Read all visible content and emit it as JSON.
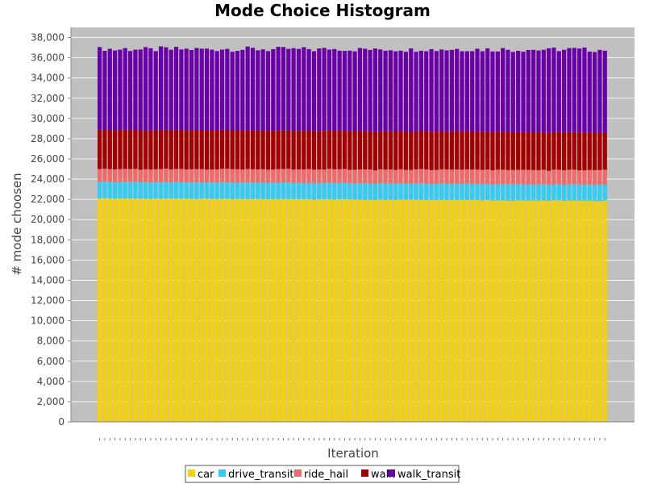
{
  "chart_data": {
    "type": "bar",
    "stacked": true,
    "title": "Mode Choice Histogram",
    "xlabel": "Iteration",
    "ylabel": "# mode choosen",
    "ylim": [
      0,
      39000
    ],
    "yticks": [
      0,
      2000,
      4000,
      6000,
      8000,
      10000,
      12000,
      14000,
      16000,
      18000,
      20000,
      22000,
      24000,
      26000,
      28000,
      30000,
      32000,
      34000,
      36000,
      38000
    ],
    "ytick_labels": [
      "0",
      "2,000",
      "4,000",
      "6,000",
      "8,000",
      "10,000",
      "12,000",
      "14,000",
      "16,000",
      "18,000",
      "20,000",
      "22,000",
      "24,000",
      "26,000",
      "28,000",
      "30,000",
      "32,000",
      "34,000",
      "36,000",
      "38,000"
    ],
    "grid": true,
    "legend_position": "bottom",
    "n_iterations": 100,
    "series": [
      {
        "name": "car",
        "color": "#f5d10a",
        "start": 22100,
        "end": 21850
      },
      {
        "name": "drive_transit",
        "color": "#33ccf2",
        "start": 1650,
        "end": 1600
      },
      {
        "name": "ride_hail",
        "color": "#f06a6a",
        "start": 1250,
        "end": 1450
      },
      {
        "name": "walk",
        "color": "#a50000",
        "start": 3900,
        "end": 3700
      },
      {
        "name": "walk_transit",
        "color": "#6a00a8",
        "start": 7950,
        "end": 8200
      }
    ]
  }
}
